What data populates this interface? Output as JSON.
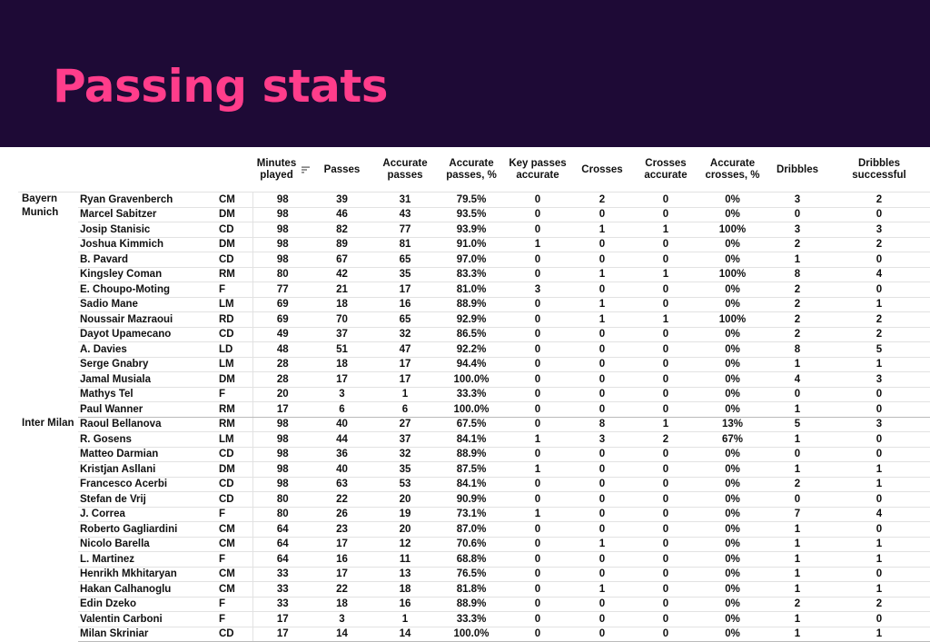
{
  "title": "Passing stats",
  "columns": {
    "minutes": "Minutes played",
    "passes": "Passes",
    "accurate_passes": "Accurate passes",
    "accurate_passes_pct": "Accurate passes, %",
    "key_passes": "Key passes accurate",
    "crosses": "Crosses",
    "crosses_accurate": "Crosses accurate",
    "accurate_crosses_pct": "Accurate crosses, %",
    "dribbles": "Dribbles",
    "dribbles_successful": "Dribbles successful"
  },
  "sort_icon": "sort-descending-icon",
  "colors": {
    "header_bg": "#1e0a36",
    "title": "#ff3d8b"
  },
  "teams": [
    {
      "name": "Bayern Munich",
      "players": [
        [
          "Ryan Gravenberch",
          "CM",
          "98",
          "39",
          "31",
          "79.5%",
          "0",
          "2",
          "0",
          "0%",
          "3",
          "2"
        ],
        [
          "Marcel Sabitzer",
          "DM",
          "98",
          "46",
          "43",
          "93.5%",
          "0",
          "0",
          "0",
          "0%",
          "0",
          "0"
        ],
        [
          "Josip Stanisic",
          "CD",
          "98",
          "82",
          "77",
          "93.9%",
          "0",
          "1",
          "1",
          "100%",
          "3",
          "3"
        ],
        [
          "Joshua Kimmich",
          "DM",
          "98",
          "89",
          "81",
          "91.0%",
          "1",
          "0",
          "0",
          "0%",
          "2",
          "2"
        ],
        [
          "B. Pavard",
          "CD",
          "98",
          "67",
          "65",
          "97.0%",
          "0",
          "0",
          "0",
          "0%",
          "1",
          "0"
        ],
        [
          "Kingsley Coman",
          "RM",
          "80",
          "42",
          "35",
          "83.3%",
          "0",
          "1",
          "1",
          "100%",
          "8",
          "4"
        ],
        [
          "E. Choupo-Moting",
          "F",
          "77",
          "21",
          "17",
          "81.0%",
          "3",
          "0",
          "0",
          "0%",
          "2",
          "0"
        ],
        [
          "Sadio Mane",
          "LM",
          "69",
          "18",
          "16",
          "88.9%",
          "0",
          "1",
          "0",
          "0%",
          "2",
          "1"
        ],
        [
          "Noussair Mazraoui",
          "RD",
          "69",
          "70",
          "65",
          "92.9%",
          "0",
          "1",
          "1",
          "100%",
          "2",
          "2"
        ],
        [
          "Dayot Upamecano",
          "CD",
          "49",
          "37",
          "32",
          "86.5%",
          "0",
          "0",
          "0",
          "0%",
          "2",
          "2"
        ],
        [
          "A. Davies",
          "LD",
          "48",
          "51",
          "47",
          "92.2%",
          "0",
          "0",
          "0",
          "0%",
          "8",
          "5"
        ],
        [
          "Serge Gnabry",
          "LM",
          "28",
          "18",
          "17",
          "94.4%",
          "0",
          "0",
          "0",
          "0%",
          "1",
          "1"
        ],
        [
          "Jamal Musiala",
          "DM",
          "28",
          "17",
          "17",
          "100.0%",
          "0",
          "0",
          "0",
          "0%",
          "4",
          "3"
        ],
        [
          "Mathys Tel",
          "F",
          "20",
          "3",
          "1",
          "33.3%",
          "0",
          "0",
          "0",
          "0%",
          "0",
          "0"
        ],
        [
          "Paul Wanner",
          "RM",
          "17",
          "6",
          "6",
          "100.0%",
          "0",
          "0",
          "0",
          "0%",
          "1",
          "0"
        ]
      ]
    },
    {
      "name": "Inter Milan",
      "players": [
        [
          "Raoul Bellanova",
          "RM",
          "98",
          "40",
          "27",
          "67.5%",
          "0",
          "8",
          "1",
          "13%",
          "5",
          "3"
        ],
        [
          "R. Gosens",
          "LM",
          "98",
          "44",
          "37",
          "84.1%",
          "1",
          "3",
          "2",
          "67%",
          "1",
          "0"
        ],
        [
          "Matteo Darmian",
          "CD",
          "98",
          "36",
          "32",
          "88.9%",
          "0",
          "0",
          "0",
          "0%",
          "0",
          "0"
        ],
        [
          "Kristjan Asllani",
          "DM",
          "98",
          "40",
          "35",
          "87.5%",
          "1",
          "0",
          "0",
          "0%",
          "1",
          "1"
        ],
        [
          "Francesco Acerbi",
          "CD",
          "98",
          "63",
          "53",
          "84.1%",
          "0",
          "0",
          "0",
          "0%",
          "2",
          "1"
        ],
        [
          "Stefan de Vrij",
          "CD",
          "80",
          "22",
          "20",
          "90.9%",
          "0",
          "0",
          "0",
          "0%",
          "0",
          "0"
        ],
        [
          "J. Correa",
          "F",
          "80",
          "26",
          "19",
          "73.1%",
          "1",
          "0",
          "0",
          "0%",
          "7",
          "4"
        ],
        [
          "Roberto Gagliardini",
          "CM",
          "64",
          "23",
          "20",
          "87.0%",
          "0",
          "0",
          "0",
          "0%",
          "1",
          "0"
        ],
        [
          "Nicolo Barella",
          "CM",
          "64",
          "17",
          "12",
          "70.6%",
          "0",
          "1",
          "0",
          "0%",
          "1",
          "1"
        ],
        [
          "L. Martinez",
          "F",
          "64",
          "16",
          "11",
          "68.8%",
          "0",
          "0",
          "0",
          "0%",
          "1",
          "1"
        ],
        [
          "Henrikh Mkhitaryan",
          "CM",
          "33",
          "17",
          "13",
          "76.5%",
          "0",
          "0",
          "0",
          "0%",
          "1",
          "0"
        ],
        [
          "Hakan Calhanoglu",
          "CM",
          "33",
          "22",
          "18",
          "81.8%",
          "0",
          "1",
          "0",
          "0%",
          "1",
          "1"
        ],
        [
          "Edin Dzeko",
          "F",
          "33",
          "18",
          "16",
          "88.9%",
          "0",
          "0",
          "0",
          "0%",
          "2",
          "2"
        ],
        [
          "Valentin Carboni",
          "F",
          "17",
          "3",
          "1",
          "33.3%",
          "0",
          "0",
          "0",
          "0%",
          "1",
          "0"
        ],
        [
          "Milan Skriniar",
          "CD",
          "17",
          "14",
          "14",
          "100.0%",
          "0",
          "0",
          "0",
          "0%",
          "1",
          "1"
        ]
      ]
    }
  ]
}
